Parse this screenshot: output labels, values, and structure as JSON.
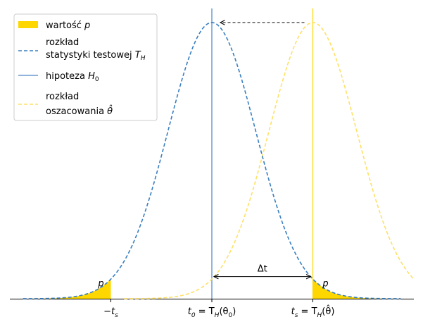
{
  "chart_data": {
    "type": "area",
    "xlim": [
      -4.6,
      4.6
    ],
    "ylim": [
      0,
      1.05
    ],
    "colors": {
      "null_distribution": "#3a7fc0",
      "estimate_distribution": "#ffe066",
      "null_line": "#4a86c8",
      "estimate_line": "#ffd700",
      "p_fill": "#ffd700"
    },
    "series": [
      {
        "name": "rozkład statystyki testowej T_H",
        "kind": "dashed-curve",
        "center": 0,
        "sigma": 1.0,
        "peak": 1.0
      },
      {
        "name": "rozkład oszacowania θ̂",
        "kind": "dashed-curve",
        "center": 2.3,
        "sigma": 1.0,
        "peak": 1.0
      },
      {
        "name": "hipoteza H0",
        "kind": "vertical-line",
        "x": 0
      },
      {
        "name": "wartość p",
        "kind": "tail-fill",
        "regions": [
          [
            -4.3,
            -2.3
          ],
          [
            2.3,
            4.3
          ]
        ]
      }
    ],
    "ticks": [
      {
        "x": -2.3,
        "main": "−t",
        "sub": "s",
        "rest": ""
      },
      {
        "x": 0,
        "main": "t",
        "sub": "0",
        "rest": " = T",
        "sub2": "H",
        "rest2": "(θ",
        "sub3": "0",
        "rest3": ")"
      },
      {
        "x": 2.3,
        "main": "t",
        "sub": "s",
        "rest": " = T",
        "sub2": "H",
        "rest2": "(θ̂)"
      }
    ],
    "annotations": {
      "delta_label": "Δt",
      "p_label": "p"
    },
    "legend": {
      "placement": "top-left",
      "items": [
        {
          "line1": "wartość ",
          "italic1": "p",
          "type": "patch"
        },
        {
          "line1": "rozkład",
          "line2": "statystyki testowej ",
          "italic2": "T",
          "sub2": "H",
          "type": "blue-dashed"
        },
        {
          "line1": "hipoteza ",
          "italic1": "H",
          "sub1": "0",
          "type": "blue-solid"
        },
        {
          "line1": "rozkład",
          "line2": "oszacowania ",
          "italic2": "θ̂",
          "type": "yellow-dashed"
        }
      ]
    }
  }
}
